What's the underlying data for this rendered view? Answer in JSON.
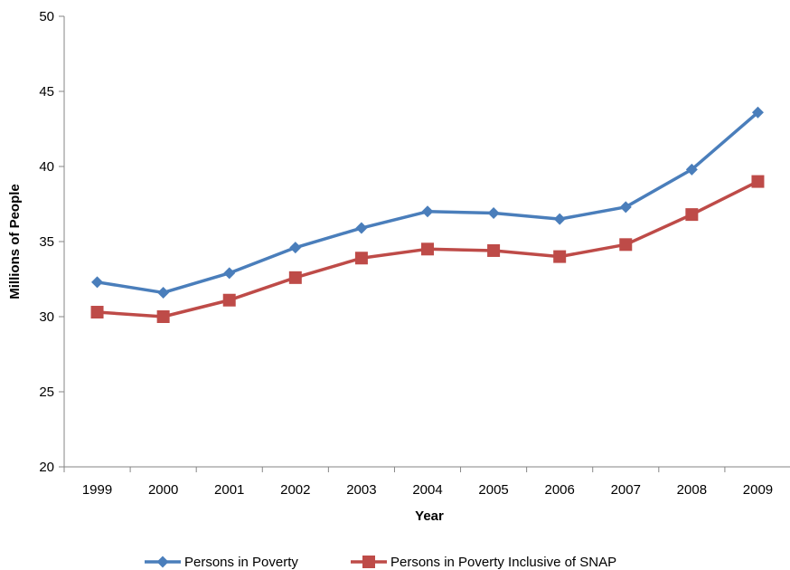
{
  "chart_data": {
    "type": "line",
    "title": "",
    "xlabel": "Year",
    "ylabel": "Millions of People",
    "categories": [
      "1999",
      "2000",
      "2001",
      "2002",
      "2003",
      "2004",
      "2005",
      "2006",
      "2007",
      "2008",
      "2009"
    ],
    "ylim": [
      20,
      50
    ],
    "yticks": [
      20,
      25,
      30,
      35,
      40,
      45,
      50
    ],
    "grid": false,
    "legend_position": "bottom",
    "series": [
      {
        "name": "Persons in Poverty",
        "color": "#4a7ebb",
        "marker": "diamond",
        "values": [
          32.3,
          31.6,
          32.9,
          34.6,
          35.9,
          37.0,
          36.9,
          36.5,
          37.3,
          39.8,
          43.6
        ]
      },
      {
        "name": "Persons in Poverty Inclusive of SNAP",
        "color": "#be4b48",
        "marker": "square",
        "values": [
          30.3,
          30.0,
          31.1,
          32.6,
          33.9,
          34.5,
          34.4,
          34.0,
          34.8,
          36.8,
          39.0
        ]
      }
    ]
  }
}
